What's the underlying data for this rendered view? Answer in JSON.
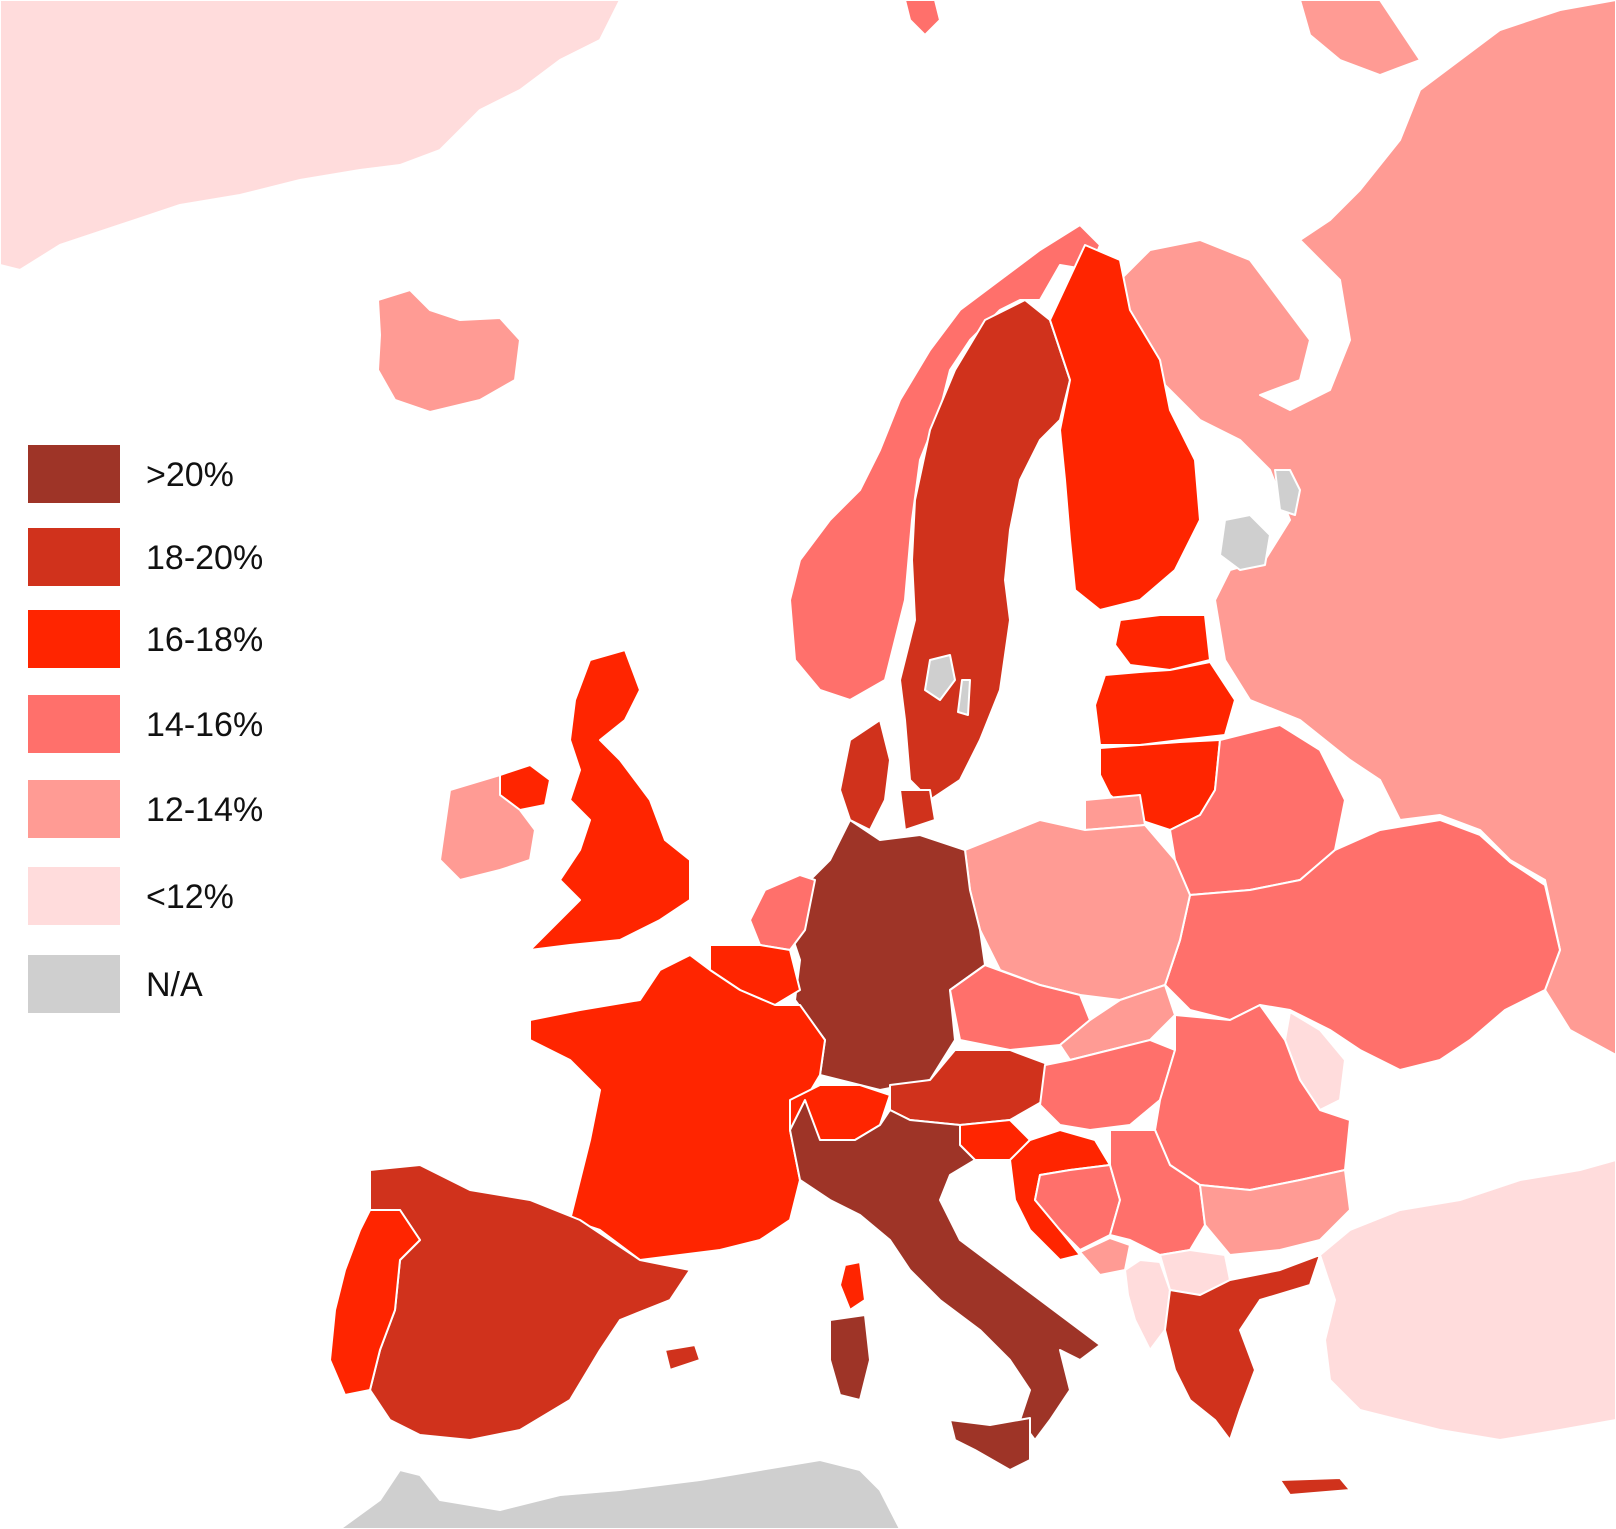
{
  "colors": {
    "sea": "#ffffff",
    "border": "#ffffff",
    "gt20": "#9e3427",
    "p18_20": "#d0321c",
    "p16_18": "#ff2500",
    "p14_16": "#ff706b",
    "p12_14": "#ff9b94",
    "lt12": "#ffdcdc",
    "na": "#cfcfcf"
  },
  "legend": {
    "items": [
      {
        "label": ">20%",
        "color": "#9e3427"
      },
      {
        "label": "18-20%",
        "color": "#d0321c"
      },
      {
        "label": "16-18%",
        "color": "#ff2500"
      },
      {
        "label": "14-16%",
        "color": "#ff706b"
      },
      {
        "label": "12-14%",
        "color": "#ff9b94"
      },
      {
        "label": "<12%",
        "color": "#ffdcdc"
      },
      {
        "label": "N/A",
        "color": "#cfcfcf"
      }
    ]
  }
}
